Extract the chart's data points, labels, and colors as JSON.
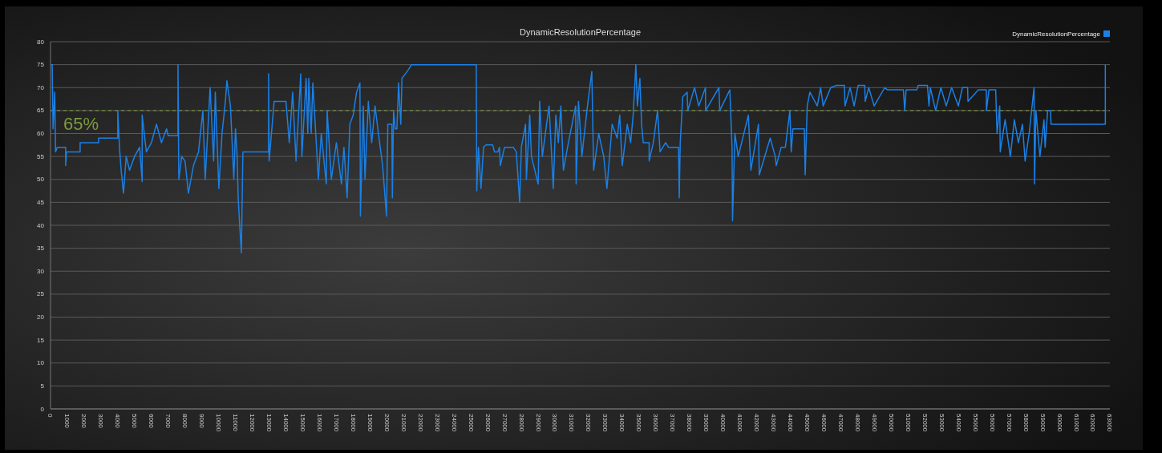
{
  "chart_data": {
    "type": "line",
    "title": "DynamicResolutionPercentage",
    "x": [
      0,
      100,
      150,
      250,
      300,
      400,
      900,
      900,
      950,
      1760,
      1760,
      2860,
      2860,
      4000,
      4000,
      4100,
      4200,
      4340,
      4500,
      4700,
      5000,
      5300,
      5450,
      5450,
      5700,
      6000,
      6300,
      6600,
      6900,
      7000,
      7580,
      7580,
      7630,
      7800,
      8000,
      8200,
      8500,
      8800,
      9060,
      9200,
      9490,
      9700,
      9800,
      10010,
      10200,
      10400,
      10490,
      10700,
      10900,
      11000,
      11100,
      11160,
      11250,
      11350,
      11440,
      12970,
      12970,
      13000,
      13300,
      14000,
      14200,
      14400,
      14600,
      14880,
      14950,
      15200,
      15300,
      15360,
      15500,
      15600,
      15930,
      16100,
      16400,
      16450,
      16700,
      17000,
      17300,
      17450,
      17640,
      17800,
      18000,
      18200,
      18400,
      18430,
      18600,
      18700,
      18900,
      19100,
      19300,
      19500,
      19750,
      19980,
      20060,
      20300,
      20330,
      20400,
      20500,
      20600,
      20700,
      20830,
      20900,
      21100,
      21300,
      21460,
      25320,
      25350,
      25450,
      25600,
      25750,
      25900,
      26300,
      26400,
      26600,
      26700,
      26750,
      27000,
      27520,
      27700,
      27900,
      28000,
      28250,
      28300,
      28500,
      28600,
      29000,
      29090,
      29250,
      29500,
      29650,
      29900,
      30050,
      30200,
      30350,
      30500,
      30800,
      31230,
      31260,
      31400,
      31600,
      31900,
      32190,
      32300,
      32600,
      32900,
      33090,
      33400,
      33700,
      33850,
      34000,
      34300,
      34500,
      34650,
      34810,
      34900,
      35050,
      35150,
      35250,
      35600,
      35600,
      35850,
      36100,
      36250,
      36580,
      36750,
      37350,
      37390,
      37450,
      37600,
      37860,
      37900,
      38300,
      38550,
      38950,
      38960,
      39750,
      39800,
      40400,
      40530,
      40560,
      40700,
      40900,
      41500,
      41650,
      42100,
      42150,
      42800,
      43100,
      43160,
      43450,
      43700,
      43970,
      44050,
      44150,
      44830,
      44880,
      45000,
      45160,
      45600,
      45800,
      45950,
      46400,
      46750,
      47210,
      47250,
      47550,
      47790,
      48030,
      48420,
      48450,
      48660,
      48980,
      49610,
      49770,
      50720,
      50800,
      50880,
      51520,
      51600,
      52150,
      52240,
      52320,
      52640,
      52950,
      53270,
      53590,
      53990,
      54230,
      54540,
      54560,
      55180,
      55650,
      55660,
      55810,
      56210,
      56290,
      56450,
      56480,
      56770,
      57080,
      57320,
      57560,
      57800,
      57960,
      58200,
      58490,
      58520,
      58600,
      58840,
      59080,
      59150,
      59300,
      59470,
      59500,
      62730,
      62730
    ],
    "series": [
      {
        "name": "DynamicResolutionPercentage",
        "color": "#1a80e6",
        "values": [
          75,
          75,
          61,
          69,
          56,
          57,
          57,
          53,
          56,
          56,
          58,
          58,
          59,
          59,
          65,
          57,
          52,
          47,
          55,
          52,
          55,
          57,
          49.5,
          64,
          56,
          58,
          62,
          58,
          61,
          59.5,
          59.5,
          75,
          50,
          55,
          54,
          47,
          53,
          56,
          65,
          50,
          70,
          54,
          69,
          48,
          60,
          67,
          71.5,
          66,
          50,
          61,
          55,
          46,
          40,
          34,
          56,
          56,
          73,
          54,
          67,
          67,
          58,
          69,
          54,
          73,
          55,
          72,
          60,
          72,
          60,
          71,
          50,
          60,
          49,
          65,
          50,
          58,
          49,
          57,
          46,
          62,
          64,
          69,
          71,
          42,
          66,
          50,
          67,
          58,
          66,
          60,
          53,
          42,
          62,
          62,
          46,
          65,
          61,
          61,
          71,
          62,
          72,
          73,
          74,
          75,
          75,
          47.5,
          57,
          48,
          57,
          57.5,
          57.5,
          56,
          56,
          57,
          53,
          57,
          57,
          56,
          45,
          57,
          62,
          50,
          64,
          55,
          49,
          67,
          55,
          62,
          66,
          48,
          64,
          58,
          66,
          52,
          58,
          66,
          49,
          67,
          55,
          65,
          73.5,
          52,
          60,
          55,
          48,
          62,
          59,
          64,
          53,
          62,
          58,
          64,
          75,
          66,
          72,
          62,
          58,
          58,
          54,
          58,
          65,
          56,
          58,
          57,
          57,
          46,
          58,
          68,
          69,
          65,
          70,
          66,
          70,
          65,
          70,
          65,
          69.5,
          57,
          41,
          60,
          55,
          64,
          52,
          62,
          51,
          59,
          55,
          53,
          57,
          57,
          65,
          56,
          61,
          61,
          51,
          66,
          69,
          66,
          70,
          66,
          70,
          70.5,
          70.5,
          66,
          70,
          66,
          70.5,
          70.5,
          67,
          70,
          66,
          70,
          69.5,
          69.5,
          65,
          69.5,
          69.5,
          70.5,
          70.5,
          66,
          70,
          65,
          70,
          66,
          70,
          66,
          70,
          70,
          67,
          69.5,
          69.5,
          65,
          69.5,
          69.5,
          60,
          66,
          56,
          63,
          55,
          63,
          58,
          62,
          54,
          60,
          70,
          49,
          65,
          55,
          63,
          57,
          65,
          65,
          62,
          62,
          75
        ]
      }
    ],
    "xlim": [
      0,
      63000
    ],
    "xticks": [
      0,
      1000,
      2000,
      3000,
      4000,
      5000,
      6000,
      7000,
      8000,
      9000,
      10000,
      11000,
      12000,
      13000,
      14000,
      15000,
      16000,
      17000,
      18000,
      19000,
      20000,
      21000,
      22000,
      23000,
      24000,
      25000,
      26000,
      27000,
      28000,
      29000,
      30000,
      31000,
      32000,
      33000,
      34000,
      35000,
      36000,
      37000,
      38000,
      39000,
      40000,
      41000,
      42000,
      43000,
      44000,
      45000,
      46000,
      47000,
      48000,
      49000,
      50000,
      51000,
      52000,
      53000,
      54000,
      55000,
      56000,
      57000,
      58000,
      59000,
      60000,
      61000,
      62000,
      63000
    ],
    "ylim": [
      0,
      80
    ],
    "yticks": [
      0,
      5,
      10,
      15,
      20,
      25,
      30,
      35,
      40,
      45,
      50,
      55,
      60,
      65,
      70,
      75,
      80
    ],
    "grid": "y",
    "legend": "top right",
    "ref_lines": [
      {
        "axis": "y",
        "value": 65,
        "label": "65%",
        "color": "#7d9a3c",
        "line_style": "dashed"
      }
    ]
  }
}
